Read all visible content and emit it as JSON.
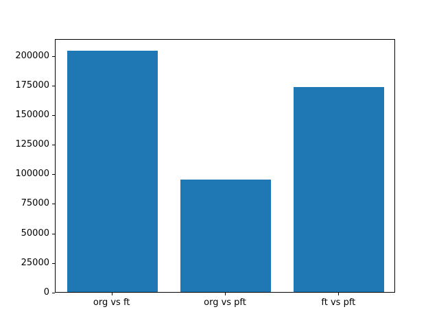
{
  "chart_data": {
    "type": "bar",
    "categories": [
      "org vs ft",
      "org vs pft",
      "ft vs pft"
    ],
    "values": [
      204000,
      95000,
      173000
    ],
    "title": "",
    "xlabel": "",
    "ylabel": "",
    "ylim": [
      0,
      214200
    ],
    "yticks": [
      0,
      25000,
      50000,
      75000,
      100000,
      125000,
      150000,
      175000,
      200000
    ],
    "bar_color": "#1f77b4",
    "grid": false,
    "legend": null
  }
}
